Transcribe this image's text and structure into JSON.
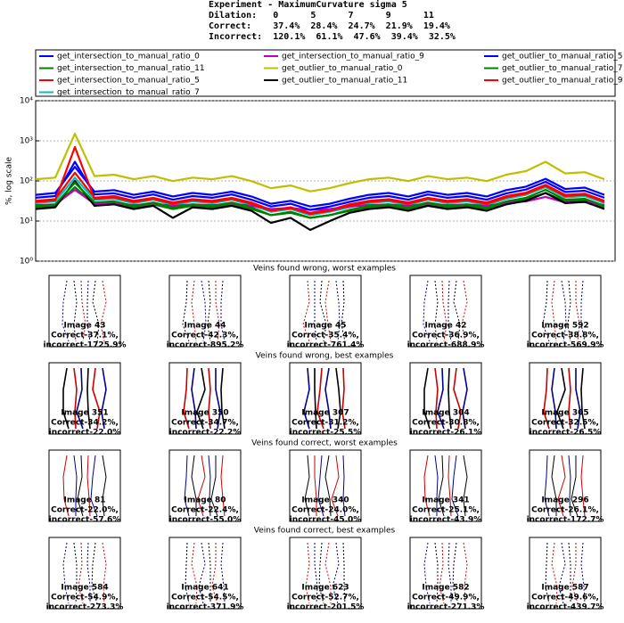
{
  "header": {
    "lines": [
      "Experiment - MaximumCurvature sigma 5",
      "Dilation:   0      5      7      9      11",
      "Correct:    37.4%  28.4%  24.7%  21.9%  19.4%",
      "Incorrect:  120.1%  61.1%  47.6%  39.4%  32.5%"
    ]
  },
  "chart_data": {
    "type": "line",
    "ylabel": "%, log scale",
    "log_y": true,
    "grid": true,
    "x": [
      0,
      22,
      44,
      66,
      88,
      110,
      132,
      154,
      176,
      198,
      220,
      242,
      264,
      286,
      308,
      330,
      352,
      374,
      396,
      418,
      440,
      462,
      484,
      506,
      528,
      550,
      572,
      594,
      616,
      638
    ],
    "xlim": [
      0,
      650
    ],
    "ylim": [
      1,
      10000
    ],
    "yticks": [
      {
        "value": 1,
        "label": "10⁰"
      },
      {
        "value": 10,
        "label": "10¹"
      },
      {
        "value": 100,
        "label": "10²"
      },
      {
        "value": 1000,
        "label": "10³"
      },
      {
        "value": 10000,
        "label": "10⁴"
      }
    ],
    "series": [
      {
        "name": "get_intersection_to_manual_ratio_0",
        "color": "#0000ff",
        "values": [
          45,
          50,
          225,
          54,
          59,
          45,
          54,
          41,
          50,
          45,
          54,
          41,
          27,
          32,
          23,
          27,
          36,
          45,
          50,
          41,
          54,
          45,
          50,
          41,
          59,
          72,
          113,
          63,
          68,
          45
        ]
      },
      {
        "name": "get_intersection_to_manual_ratio_11",
        "color": "#008000",
        "values": [
          22,
          24,
          70,
          26,
          29,
          22,
          26,
          20,
          24,
          22,
          26,
          20,
          14,
          16,
          12,
          14,
          18,
          22,
          24,
          20,
          26,
          22,
          24,
          20,
          29,
          35,
          50,
          31,
          33,
          22
        ]
      },
      {
        "name": "get_intersection_to_manual_ratio_5",
        "color": "#ff0000",
        "values": [
          32,
          35,
          160,
          38,
          42,
          32,
          38,
          29,
          35,
          32,
          38,
          29,
          19,
          22,
          16,
          19,
          26,
          32,
          35,
          29,
          38,
          32,
          35,
          29,
          42,
          51,
          80,
          45,
          48,
          32
        ]
      },
      {
        "name": "get_intersection_to_manual_ratio_7",
        "color": "#00bfbf",
        "values": [
          28,
          31,
          120,
          34,
          36,
          28,
          34,
          25,
          31,
          28,
          34,
          25,
          17,
          20,
          14,
          17,
          22,
          28,
          31,
          25,
          34,
          28,
          31,
          25,
          36,
          45,
          70,
          39,
          42,
          28
        ]
      },
      {
        "name": "get_intersection_to_manual_ratio_9",
        "color": "#bf00bf",
        "values": [
          25,
          26,
          60,
          27,
          28,
          25,
          27,
          24,
          26,
          25,
          27,
          24,
          20,
          21,
          19,
          20,
          23,
          25,
          26,
          24,
          27,
          25,
          26,
          24,
          28,
          31,
          40,
          29,
          30,
          25
        ]
      },
      {
        "name": "get_outlier_to_manual_ratio_0",
        "color": "#bfbf00",
        "values": [
          110,
          121,
          1500,
          132,
          143,
          110,
          132,
          99,
          121,
          110,
          132,
          99,
          66,
          77,
          55,
          66,
          88,
          110,
          121,
          99,
          132,
          110,
          121,
          99,
          143,
          176,
          300,
          154,
          165,
          110
        ]
      },
      {
        "name": "get_outlier_to_manual_ratio_11",
        "color": "#000000",
        "values": [
          20,
          22,
          100,
          24,
          26,
          20,
          24,
          12,
          22,
          20,
          24,
          18,
          9,
          12,
          6,
          10,
          16,
          20,
          22,
          18,
          24,
          20,
          22,
          18,
          26,
          32,
          50,
          28,
          30,
          20
        ]
      },
      {
        "name": "get_outlier_to_manual_ratio_5",
        "color": "#0000ff",
        "values": [
          38,
          42,
          300,
          46,
          49,
          38,
          46,
          34,
          42,
          38,
          46,
          34,
          23,
          27,
          19,
          23,
          30,
          38,
          42,
          34,
          46,
          38,
          42,
          34,
          49,
          61,
          95,
          53,
          57,
          38
        ]
      },
      {
        "name": "get_outlier_to_manual_ratio_7",
        "color": "#008000",
        "values": [
          24,
          26,
          90,
          29,
          31,
          24,
          29,
          22,
          26,
          24,
          29,
          22,
          14,
          17,
          12,
          14,
          19,
          24,
          26,
          22,
          29,
          24,
          26,
          22,
          31,
          38,
          60,
          34,
          36,
          24
        ]
      },
      {
        "name": "get_outlier_to_manual_ratio_9",
        "color": "#ff0000",
        "values": [
          30,
          33,
          700,
          36,
          39,
          30,
          36,
          27,
          33,
          30,
          36,
          27,
          18,
          21,
          15,
          18,
          24,
          30,
          33,
          27,
          36,
          30,
          33,
          27,
          39,
          48,
          75,
          42,
          45,
          30
        ]
      }
    ]
  },
  "galleries": [
    {
      "title": "Veins found wrong, worst examples",
      "items": [
        {
          "image": "Image 43",
          "correct": "Correct-37.1%,",
          "incorrect": "incorrect-1725.9%"
        },
        {
          "image": "Image 44",
          "correct": "Correct-42.3%,",
          "incorrect": "incorrect-895.2%"
        },
        {
          "image": "Image 45",
          "correct": "Correct-35.4%,",
          "incorrect": "incorrect-761.4%"
        },
        {
          "image": "Image 42",
          "correct": "Correct-36.9%,",
          "incorrect": "incorrect-688.9%"
        },
        {
          "image": "Image 592",
          "correct": "Correct-38.8%,",
          "incorrect": "incorrect-569.9%"
        }
      ]
    },
    {
      "title": "Veins found wrong, best examples",
      "items": [
        {
          "image": "Image 351",
          "correct": "Correct-34.2%,",
          "incorrect": "incorrect-22.0%"
        },
        {
          "image": "Image 350",
          "correct": "Correct-34.7%,",
          "incorrect": "incorrect-22.2%"
        },
        {
          "image": "Image 307",
          "correct": "Correct-31.2%,",
          "incorrect": "incorrect-25.5%"
        },
        {
          "image": "Image 304",
          "correct": "Correct-30.8%,",
          "incorrect": "incorrect-26.1%"
        },
        {
          "image": "Image 305",
          "correct": "Correct-32.5%,",
          "incorrect": "incorrect-26.5%"
        }
      ]
    },
    {
      "title": "Veins found correct, worst examples",
      "items": [
        {
          "image": "Image 81",
          "correct": "Correct-22.0%,",
          "incorrect": "incorrect-57.6%"
        },
        {
          "image": "Image 80",
          "correct": "Correct-22.4%,",
          "incorrect": "incorrect-55.0%"
        },
        {
          "image": "Image 340",
          "correct": "Correct-24.0%,",
          "incorrect": "incorrect-45.0%"
        },
        {
          "image": "Image 341",
          "correct": "Correct-25.1%,",
          "incorrect": "incorrect-43.9%"
        },
        {
          "image": "Image 296",
          "correct": "Correct-26.1%,",
          "incorrect": "incorrect-172.7%"
        }
      ]
    },
    {
      "title": "Veins found correct, best examples",
      "items": [
        {
          "image": "Image 584",
          "correct": "Correct-54.9%,",
          "incorrect": "incorrect-273.3%"
        },
        {
          "image": "Image 641",
          "correct": "Correct-54.5%,",
          "incorrect": "incorrect-371.9%"
        },
        {
          "image": "Image 623",
          "correct": "Correct-52.7%,",
          "incorrect": "incorrect-201.5%"
        },
        {
          "image": "Image 582",
          "correct": "Correct-49.9%,",
          "incorrect": "incorrect-271.3%"
        },
        {
          "image": "Image 587",
          "correct": "Correct-49.6%,",
          "incorrect": "incorrect-439.7%"
        }
      ]
    }
  ]
}
